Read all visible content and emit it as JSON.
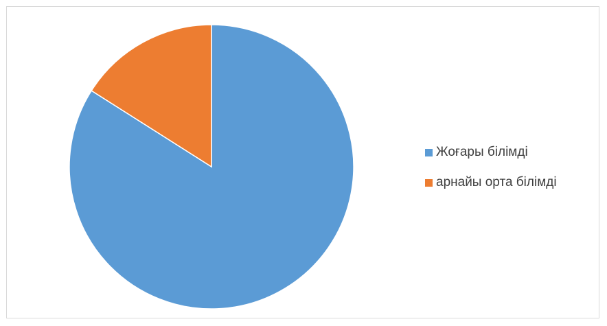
{
  "chart_data": {
    "type": "pie",
    "title": "",
    "series": [
      {
        "values": [
          84,
          16
        ],
        "labels": [
          "Жоғары білімді",
          "арнайы орта білімді"
        ],
        "colors": [
          "#5b9bd5",
          "#ed7d31"
        ]
      }
    ],
    "legend_position": "right",
    "start_angle": "12 o'clock, clockwise"
  }
}
